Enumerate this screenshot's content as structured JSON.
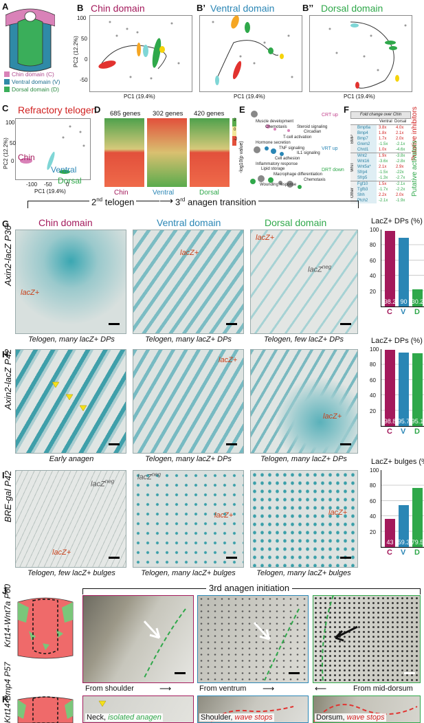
{
  "panels": {
    "A": "A",
    "B": "B",
    "B2": "B’",
    "B3": "B’’",
    "C": "C",
    "D": "D",
    "E": "E",
    "F": "F",
    "G": "G",
    "H": "H",
    "I": "I",
    "J": "J",
    "K": "K"
  },
  "legend_a": [
    {
      "label": "Chin domain (C)",
      "color": "#d982b8"
    },
    {
      "label": "Ventral domain (V)",
      "color": "#2f8aa7"
    },
    {
      "label": "Dorsal domain (D)",
      "color": "#3aae5a"
    }
  ],
  "pca": {
    "titles": [
      "Chin domain",
      "Ventral domain",
      "Dorsal domain"
    ],
    "xlabel": "PC1 (19.4%)",
    "ylabel": "PC2 (12.2%)",
    "yticks": [
      "100",
      "50",
      "0",
      "-50"
    ],
    "xticks": [
      "-100",
      "-50",
      "0",
      "50",
      "100"
    ]
  },
  "c_title": "Refractory telogen",
  "c_labels": {
    "chin": "Chin",
    "ventral": "Ventral",
    "dorsal": "Dorsal"
  },
  "heatmap": {
    "counts": [
      "685 genes",
      "302 genes",
      "420 genes"
    ],
    "groups": [
      "Chin",
      "Ventral",
      "Dorsal"
    ],
    "scale": [
      "2",
      "0",
      "-2"
    ]
  },
  "e_panel": {
    "ylabel": "-log10(p value)",
    "groups": [
      "CRT up",
      "VRT up",
      "DRT down"
    ],
    "terms": [
      "Muscle development",
      "Chemotaxis",
      "Steroid signaling",
      "Circadian",
      "T-cell activation",
      "Hormone secretion",
      "TNF signaling",
      "IL1 signaling",
      "Cell adhesion",
      "Inflammatory response",
      "Lipid storage",
      "Macrophage differentiation",
      "Chemotaxis",
      "Wounding response"
    ]
  },
  "f_table": {
    "header": "Fold change over Chin",
    "cols": [
      "Ventral",
      "Dorsal"
    ],
    "groups": [
      {
        "name": "BMP",
        "rows": [
          [
            "Bmp6a",
            "3.8x",
            "4.0x"
          ],
          [
            "Bmp4",
            "1.8x",
            "2.1x"
          ],
          [
            "Bmp7",
            "1.7x",
            "2.0x"
          ],
          [
            "Grem2",
            "-1.5x",
            "-2.1x"
          ],
          [
            "Chrd1",
            "1.0x",
            "-4.6x"
          ]
        ]
      },
      {
        "name": "WNT",
        "rows": [
          [
            "Wnt2",
            "1.9x",
            "-3.8x"
          ],
          [
            "Wnt16",
            "-3.6x",
            "-2.8x"
          ],
          [
            "Wnt5a*",
            "2.1x",
            "2.9x"
          ],
          [
            "Sfrp4",
            "-1.5x",
            "-22x"
          ],
          [
            "Sfrp5",
            "-1.3x",
            "-2.7x"
          ]
        ]
      },
      {
        "name": "Other",
        "rows": [
          [
            "Fgf10",
            "1.5x",
            "-2.1x"
          ],
          [
            "Tgfb3",
            "-1.7x",
            "-2.2x"
          ],
          [
            "Shh",
            "2.2x",
            "2.0x"
          ],
          [
            "Ptch2",
            "-2.1x",
            "-1.9x"
          ]
        ]
      }
    ],
    "side": [
      "Putative inhibitors",
      "Putative activators"
    ]
  },
  "transition": {
    "a": "2",
    "a_sup": "nd",
    "a_rest": " telogen",
    "b": "3",
    "b_sup": "rd",
    "b_rest": " anagen transition"
  },
  "cols": [
    "Chin domain",
    "Ventral domain",
    "Dorsal domain"
  ],
  "rows": {
    "G": "Axin2-lacZ P36",
    "H": "Axin2-lacZ P42",
    "I": "BRE-gal P42",
    "J": "Krt14-Wnt7a P60",
    "K": "Krt14-Bmp4 P57"
  },
  "captions": {
    "G": [
      "Telogen, many lacZ+ DPs",
      "Telogen, many lacZ+ DPs",
      "Telogen, few lacZ+ DPs"
    ],
    "H": [
      "Early anagen",
      "Telogen, many lacZ+ DPs",
      "Telogen, many lacZ+ DPs"
    ],
    "I": [
      "Telogen, few lacZ+ bulges",
      "Telogen, many lacZ+ bulges",
      "Telogen, many lacZ+ bulges"
    ]
  },
  "annot": {
    "lacz": "lacZ+",
    "lacz_neg": "lacZ",
    "neg": "neg"
  },
  "bars": {
    "G": {
      "title": "LacZ+ DPs (%)",
      "values": [
        98.2,
        90,
        30.2
      ]
    },
    "H": {
      "title": "LacZ+ DPs (%)",
      "values": [
        98.8,
        95.7,
        95.1
      ]
    },
    "I": {
      "title": "LacZ+ bulges (%)",
      "values": [
        43,
        59.3,
        79.5
      ]
    },
    "cats": [
      "C",
      "V",
      "D"
    ],
    "colors": [
      "#a3195b",
      "#2a86b5",
      "#2fa84a"
    ],
    "yticks": [
      "100",
      "80",
      "60",
      "40",
      "20"
    ]
  },
  "j_title": "3rd anagen initiation",
  "j_caps": [
    "From shoulder",
    "From ventrum",
    "From mid-dorsum"
  ],
  "k_caps": [
    {
      "a": "Neck, ",
      "b": "isolated anagen"
    },
    {
      "a": "Shoulder, ",
      "b": "wave stops"
    },
    {
      "a": "Dorsum, ",
      "b": "wave stops"
    }
  ]
}
